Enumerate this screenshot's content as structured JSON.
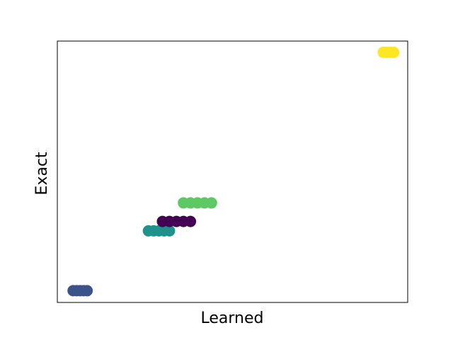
{
  "chart_data": {
    "type": "scatter",
    "xlabel": "Learned",
    "ylabel": "Exact",
    "xlim": [
      0,
      1
    ],
    "ylim": [
      0,
      1
    ],
    "grid": false,
    "ticks": false,
    "series": [
      {
        "color": "#3b528b",
        "x": [
          0.045,
          0.055,
          0.065,
          0.075,
          0.085
        ],
        "y": [
          0.045,
          0.045,
          0.045,
          0.045,
          0.045
        ]
      },
      {
        "color": "#21918c",
        "x": [
          0.26,
          0.275,
          0.29,
          0.305,
          0.32
        ],
        "y": [
          0.274,
          0.274,
          0.274,
          0.274,
          0.274
        ]
      },
      {
        "color": "#440154",
        "x": [
          0.3,
          0.32,
          0.34,
          0.36,
          0.38
        ],
        "y": [
          0.31,
          0.31,
          0.31,
          0.31,
          0.31
        ]
      },
      {
        "color": "#5ec962",
        "x": [
          0.36,
          0.38,
          0.4,
          0.42,
          0.44
        ],
        "y": [
          0.381,
          0.381,
          0.381,
          0.381,
          0.381
        ]
      },
      {
        "color": "#fde725",
        "x": [
          0.93,
          0.94,
          0.95,
          0.96
        ],
        "y": [
          0.957,
          0.957,
          0.957,
          0.957
        ]
      }
    ]
  }
}
